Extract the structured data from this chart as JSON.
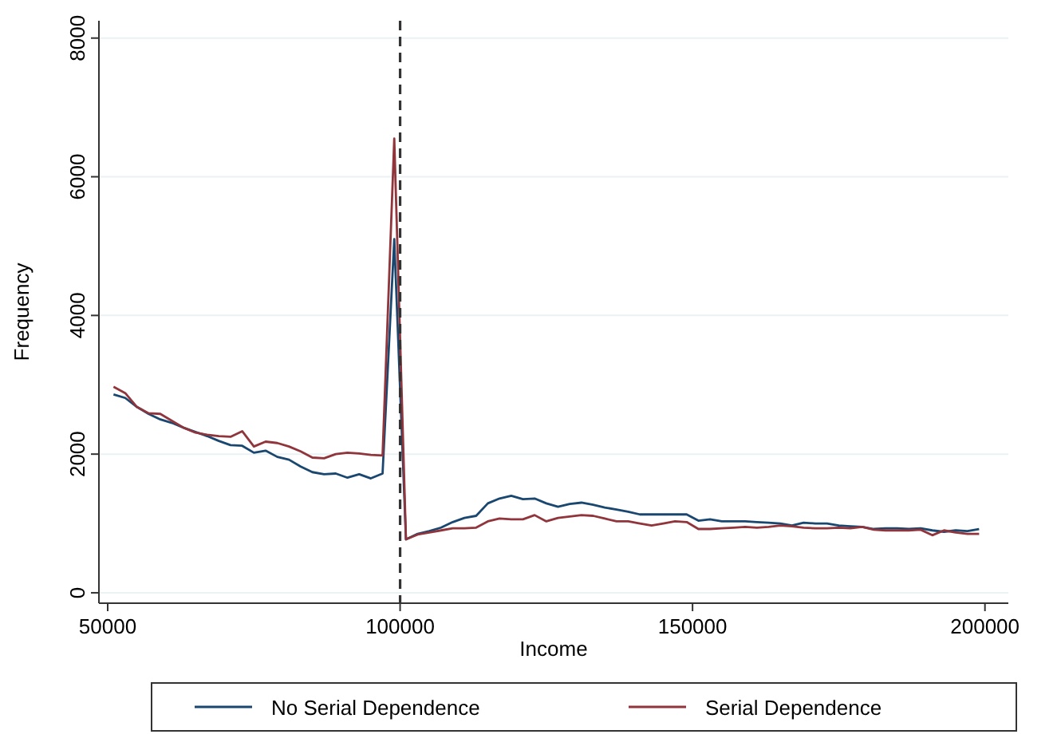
{
  "chart_data": {
    "type": "line",
    "xlabel": "Income",
    "ylabel": "Frequency",
    "x": [
      51000,
      53000,
      55000,
      57000,
      59000,
      61000,
      63000,
      65000,
      67000,
      69000,
      71000,
      73000,
      75000,
      77000,
      79000,
      81000,
      83000,
      85000,
      87000,
      89000,
      91000,
      93000,
      95000,
      97000,
      99000,
      101000,
      103000,
      105000,
      107000,
      109000,
      111000,
      113000,
      115000,
      117000,
      119000,
      121000,
      123000,
      125000,
      127000,
      129000,
      131000,
      133000,
      135000,
      137000,
      139000,
      141000,
      143000,
      145000,
      147000,
      149000,
      151000,
      153000,
      155000,
      157000,
      159000,
      161000,
      163000,
      165000,
      167000,
      169000,
      171000,
      173000,
      175000,
      177000,
      179000,
      181000,
      183000,
      185000,
      187000,
      189000,
      191000,
      193000,
      195000,
      197000,
      199000
    ],
    "series": [
      {
        "name": "No Serial Dependence",
        "color": "#1a476f",
        "values": [
          2860,
          2810,
          2680,
          2580,
          2500,
          2450,
          2380,
          2320,
          2260,
          2190,
          2130,
          2120,
          2020,
          2050,
          1960,
          1920,
          1820,
          1740,
          1710,
          1720,
          1660,
          1710,
          1650,
          1720,
          5100,
          770,
          850,
          890,
          940,
          1020,
          1080,
          1110,
          1290,
          1360,
          1400,
          1350,
          1360,
          1290,
          1240,
          1280,
          1300,
          1270,
          1230,
          1200,
          1170,
          1130,
          1130,
          1130,
          1130,
          1130,
          1040,
          1060,
          1030,
          1030,
          1030,
          1020,
          1010,
          1000,
          970,
          1010,
          1000,
          1000,
          970,
          960,
          950,
          920,
          930,
          930,
          920,
          930,
          900,
          880,
          900,
          890,
          920
        ]
      },
      {
        "name": "Serial Dependence",
        "color": "#90353b",
        "values": [
          2970,
          2880,
          2680,
          2590,
          2580,
          2480,
          2380,
          2310,
          2280,
          2260,
          2250,
          2330,
          2110,
          2180,
          2160,
          2110,
          2040,
          1950,
          1940,
          2000,
          2020,
          2010,
          1990,
          1980,
          6550,
          770,
          840,
          870,
          900,
          930,
          930,
          940,
          1030,
          1070,
          1060,
          1060,
          1120,
          1030,
          1080,
          1100,
          1120,
          1110,
          1070,
          1030,
          1030,
          1000,
          970,
          1000,
          1030,
          1020,
          920,
          920,
          930,
          940,
          950,
          940,
          950,
          970,
          960,
          940,
          930,
          930,
          940,
          930,
          950,
          910,
          900,
          900,
          900,
          910,
          830,
          900,
          870,
          850,
          850
        ]
      }
    ],
    "xlim": [
      48500,
      204000
    ],
    "xticks": [
      50000,
      100000,
      150000,
      200000
    ],
    "ylim": [
      -150,
      8250
    ],
    "yticks": [
      0,
      2000,
      4000,
      6000,
      8000
    ],
    "grid": "y",
    "legend": "bottom",
    "line_style": "solid",
    "ref_lines": [
      {
        "axis": "x",
        "value": 100000,
        "color": "#333333",
        "line_style": "dashed"
      }
    ]
  }
}
